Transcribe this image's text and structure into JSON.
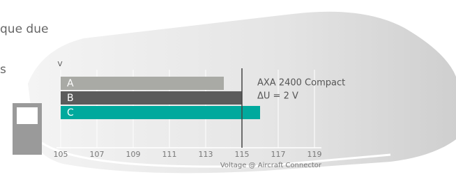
{
  "fragments": [
    "que due",
    "s"
  ],
  "chart_data": {
    "type": "bar",
    "orientation": "horizontal",
    "categories": [
      "A",
      "B",
      "C"
    ],
    "values": [
      114,
      115,
      116
    ],
    "colors": [
      "#a9aaa5",
      "#5b5b5b",
      "#00a99d"
    ],
    "xlim": [
      105,
      119
    ],
    "xticks": [
      105,
      107,
      109,
      111,
      113,
      115,
      117,
      119
    ],
    "x_label": "Voltage @ Aircraft Connector",
    "y_label": "V",
    "reference_line": 115,
    "annotations": [
      "AXA 2400 Compact",
      "ΔU = 2 V"
    ],
    "grid": true
  }
}
